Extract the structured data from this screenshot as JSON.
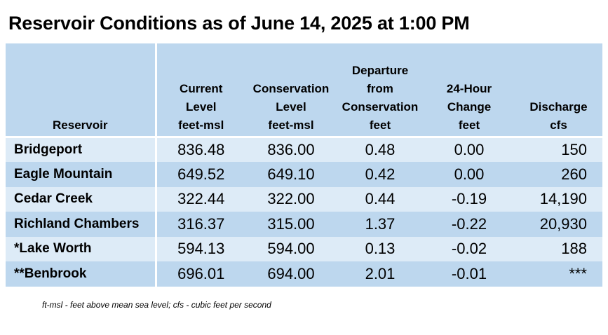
{
  "title": "Reservoir Conditions as of June 14, 2025 at 1:00 PM",
  "columns": [
    [
      "Reservoir"
    ],
    [
      "Current",
      "Level",
      "feet-msl"
    ],
    [
      "Conservation",
      "Level",
      "feet-msl"
    ],
    [
      "Departure",
      "from",
      "Conservation",
      "feet"
    ],
    [
      "24-Hour",
      "Change",
      "feet"
    ],
    [
      "Discharge",
      "cfs"
    ]
  ],
  "rows": [
    {
      "name": "Bridgeport",
      "current": "836.48",
      "conservation": "836.00",
      "departure": "0.48",
      "change": "0.00",
      "discharge": "150"
    },
    {
      "name": "Eagle Mountain",
      "current": "649.52",
      "conservation": "649.10",
      "departure": "0.42",
      "change": "0.00",
      "discharge": "260"
    },
    {
      "name": "Cedar Creek",
      "current": "322.44",
      "conservation": "322.00",
      "departure": "0.44",
      "change": "-0.19",
      "discharge": "14,190"
    },
    {
      "name": "Richland Chambers",
      "current": "316.37",
      "conservation": "315.00",
      "departure": "1.37",
      "change": "-0.22",
      "discharge": "20,930"
    },
    {
      "name": "*Lake Worth",
      "current": "594.13",
      "conservation": "594.00",
      "departure": "0.13",
      "change": "-0.02",
      "discharge": "188"
    },
    {
      "name": "**Benbrook",
      "current": "696.01",
      "conservation": "694.00",
      "departure": "2.01",
      "change": "-0.01",
      "discharge": "***"
    }
  ],
  "footnote": "ft-msl - feet above mean sea level; cfs - cubic feet per second",
  "colors": {
    "header_bg": "#bdd7ee",
    "row_light": "#ddebf7",
    "row_dark": "#bdd7ee"
  }
}
